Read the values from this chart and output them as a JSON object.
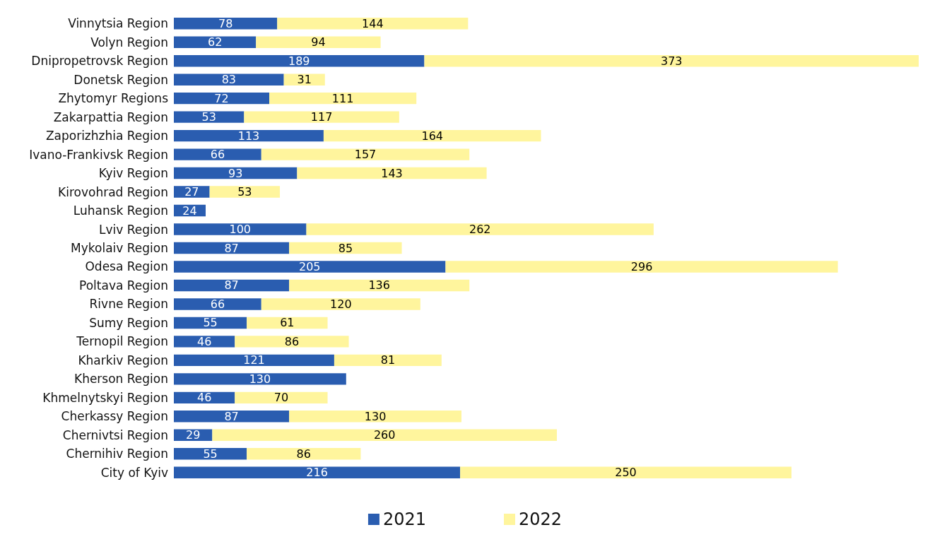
{
  "chart_data": {
    "type": "bar",
    "orientation": "horizontal",
    "stacked": true,
    "data_labels": true,
    "legend": "bottom",
    "categories": [
      "Vinnytsia Region",
      "Volyn Region",
      "Dnipropetrovsk Region",
      "Donetsk Region",
      "Zhytomyr Regions",
      "Zakarpattia Region",
      "Zaporizhzhia Region",
      "Ivano-Frankivsk Region",
      "Kyiv Region",
      "Kirovohrad Region",
      "Luhansk Region",
      "Lviv Region",
      "Mykolaiv Region",
      "Odesa Region",
      "Poltava Region",
      "Rivne Region",
      "Sumy Region",
      "Ternopil Region",
      "Kharkiv Region",
      "Kherson Region",
      "Khmelnytskyi Region",
      "Cherkassy Region",
      "Chernivtsi Region",
      "Chernihiv Region",
      "City of Kyiv"
    ],
    "series": [
      {
        "name": "2021",
        "color": "#2a5db0",
        "values": [
          78,
          62,
          189,
          83,
          72,
          53,
          113,
          66,
          93,
          27,
          24,
          100,
          87,
          205,
          87,
          66,
          55,
          46,
          121,
          130,
          46,
          87,
          29,
          55,
          216
        ]
      },
      {
        "name": "2022",
        "color": "#fff59d",
        "values": [
          144,
          94,
          373,
          31,
          111,
          117,
          164,
          157,
          143,
          53,
          null,
          262,
          85,
          296,
          136,
          120,
          61,
          86,
          81,
          null,
          70,
          130,
          260,
          86,
          250
        ]
      }
    ]
  }
}
